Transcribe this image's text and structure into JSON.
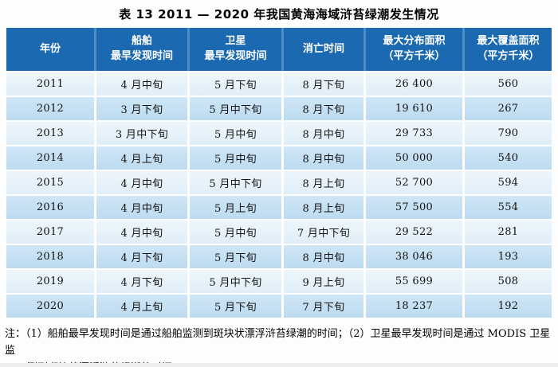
{
  "title": "表 13  2011 — 2020 年我国黄海海域浒苔绿潮发生情况",
  "table": {
    "columns": [
      {
        "line1": "年份",
        "line2": ""
      },
      {
        "line1": "船舶",
        "line2": "最早发现时间"
      },
      {
        "line1": "卫星",
        "line2": "最早发现时间"
      },
      {
        "line1": "消亡时间",
        "line2": ""
      },
      {
        "line1": "最大分布面积",
        "line2": "（平方千米）"
      },
      {
        "line1": "最大覆盖面积",
        "line2": "（平方千米）"
      }
    ],
    "rows": [
      [
        "2011",
        "4 月中旬",
        "5 月下旬",
        "8 月下旬",
        "26 400",
        "560"
      ],
      [
        "2012",
        "3 月下旬",
        "5 月中下旬",
        "8 月下旬",
        "19 610",
        "267"
      ],
      [
        "2013",
        "3 月中下旬",
        "5 月中旬",
        "8 月中旬",
        "29 733",
        "790"
      ],
      [
        "2014",
        "4 月上旬",
        "5 月中旬",
        "8 月中旬",
        "50 000",
        "540"
      ],
      [
        "2015",
        "4 月中旬",
        "5 月中下旬",
        "8 月上旬",
        "52 700",
        "594"
      ],
      [
        "2016",
        "4 月中旬",
        "5 月上旬",
        "8 月上旬",
        "57 500",
        "554"
      ],
      [
        "2017",
        "4 月中旬",
        "5 月中旬",
        "7 月中下旬",
        "29 522",
        "281"
      ],
      [
        "2018",
        "4 月下旬",
        "5 月下旬",
        "8 月中旬",
        "38 046",
        "193"
      ],
      [
        "2019",
        "4 月下旬",
        "5 月中下旬",
        "9 月上旬",
        "55 699",
        "508"
      ],
      [
        "2020",
        "4 月上旬",
        "5 月下旬",
        "7 月下旬",
        "18 237",
        "192"
      ]
    ]
  },
  "notes": {
    "line1": "注：（1）船舶最早发现时间是通过船舶监测到斑块状漂浮浒苔绿潮的时间；（2）卫星最早发现时间是通过 MODIS 卫星监",
    "line2": "测到斑块状漂浮浒苔绿潮的时间。"
  },
  "colors": {
    "header_background": "#1b69b1",
    "header_text": "#ffffff",
    "row_light": "#e9f4fb",
    "row_dark": "#c7e2f4",
    "header_divider": "#4d8dc5"
  }
}
